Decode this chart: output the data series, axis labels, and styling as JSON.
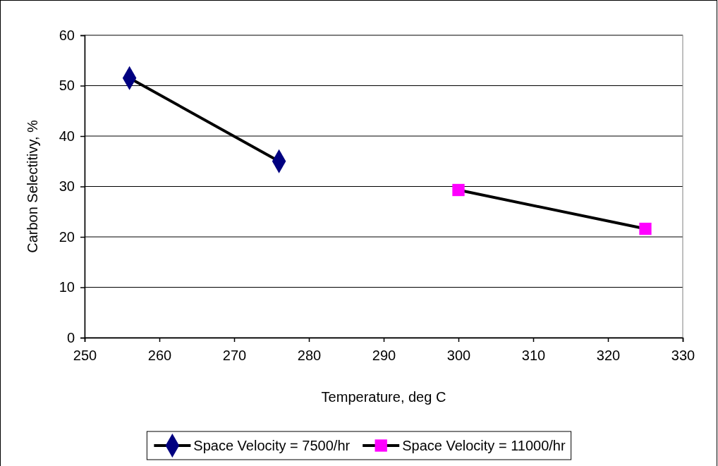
{
  "chart_data": {
    "type": "line",
    "xlabel": "Temperature, deg C",
    "ylabel": "Carbon Selectitivy, %",
    "xlim": [
      250,
      330
    ],
    "xticks": [
      250,
      260,
      270,
      280,
      290,
      300,
      310,
      320,
      330
    ],
    "ylim": [
      0,
      60
    ],
    "yticks": [
      0,
      10,
      20,
      30,
      40,
      50,
      60
    ],
    "grid": "y",
    "legend": "bottom",
    "series": [
      {
        "name": "Space Velocity = 7500/hr",
        "color": "#000080",
        "marker": "diamond",
        "x": [
          256,
          276
        ],
        "values": [
          51.5,
          35
        ]
      },
      {
        "name": "Space Velocity = 11000/hr",
        "color": "#ff00ff",
        "marker": "square",
        "x": [
          300,
          325
        ],
        "values": [
          29.3,
          21.6
        ]
      }
    ]
  }
}
